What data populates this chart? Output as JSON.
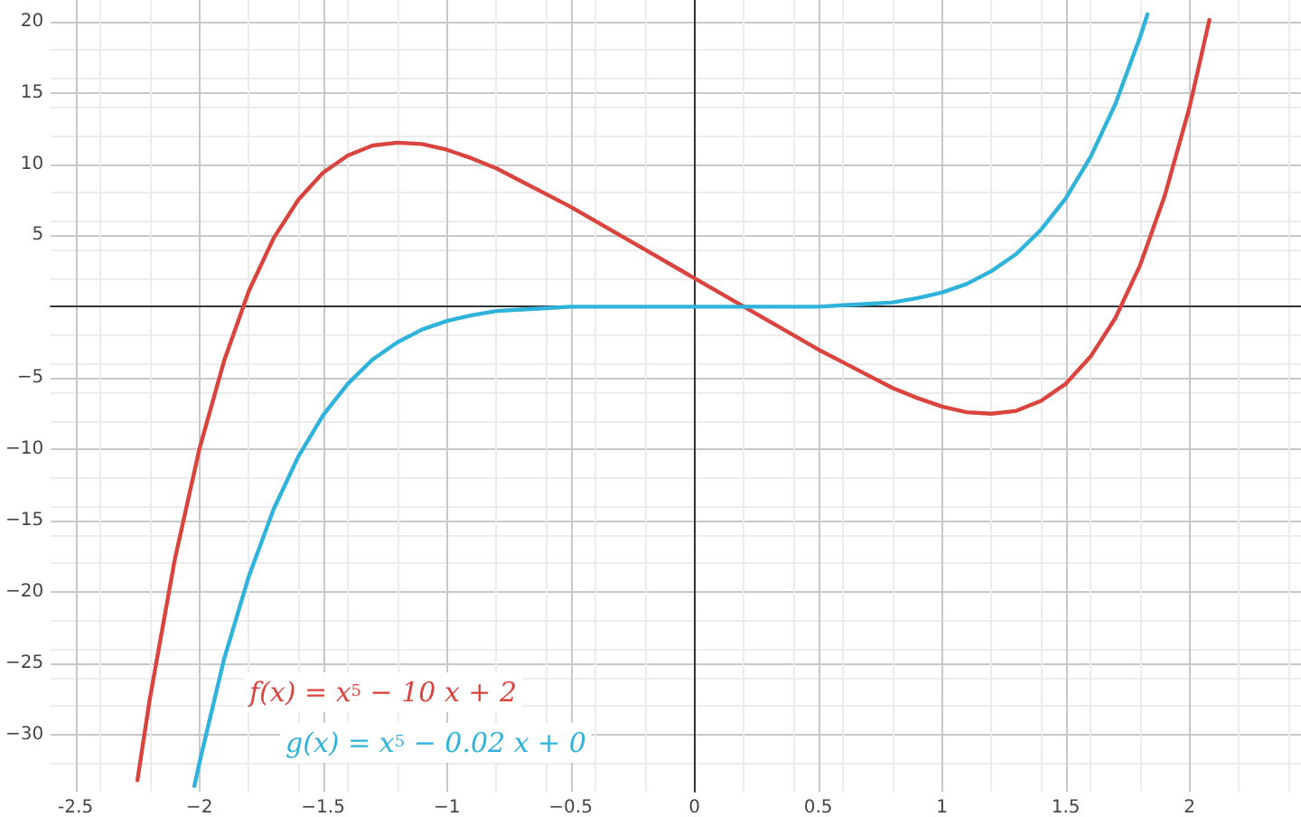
{
  "chart_data": {
    "type": "line",
    "xlim": [
      -2.6,
      2.45
    ],
    "ylim": [
      -34,
      21.5
    ],
    "xticks": [
      {
        "value": -2.5,
        "label": "-2.5"
      },
      {
        "value": -2,
        "label": "−2"
      },
      {
        "value": -1.5,
        "label": "−1.5"
      },
      {
        "value": -1,
        "label": "−1"
      },
      {
        "value": -0.5,
        "label": "−0.5"
      },
      0,
      0.5,
      1,
      1.5,
      2
    ],
    "yticks": [
      {
        "value": -30,
        "label": "−30"
      },
      {
        "value": -25,
        "label": "−25"
      },
      {
        "value": -20,
        "label": "−20"
      },
      {
        "value": -15,
        "label": "−15"
      },
      {
        "value": -10,
        "label": "−10"
      },
      {
        "value": -5,
        "label": "−5"
      },
      {
        "value": 0,
        "label": null
      },
      5,
      10,
      15,
      20
    ],
    "grid": true,
    "marker": "none",
    "line_style": "solid",
    "series": [
      {
        "name": "f(x) = x$^{5}$ − 10 x + 2",
        "color": "#d9443f",
        "x": [
          -2.25,
          -2.2,
          -2.1,
          -2.0,
          -1.9,
          -1.8,
          -1.7,
          -1.6,
          -1.5,
          -1.4,
          -1.3,
          -1.2,
          -1.1,
          -1.0,
          -0.9,
          -0.8,
          -0.7,
          -0.6,
          -0.5,
          -0.4,
          -0.3,
          -0.2,
          -0.1,
          0,
          0.1,
          0.2,
          0.3,
          0.4,
          0.5,
          0.6,
          0.7,
          0.8,
          0.9,
          1.0,
          1.1,
          1.2,
          1.3,
          1.4,
          1.5,
          1.6,
          1.7,
          1.8,
          1.9,
          2.0,
          2.08
        ],
        "values": [
          -33.2,
          -27.5,
          -17.8,
          -10,
          -3.8,
          1.1,
          4.8,
          7.5,
          9.4,
          10.6,
          11.3,
          11.5,
          11.4,
          11,
          10.4,
          9.7,
          8.8,
          7.9,
          7.0,
          6.0,
          5.0,
          4.0,
          3.0,
          2,
          1.0,
          0.0,
          -1.0,
          -2.0,
          -3.0,
          -3.9,
          -4.8,
          -5.7,
          -6.4,
          -7,
          -7.4,
          -7.5,
          -7.3,
          -6.6,
          -5.4,
          -3.5,
          -0.8,
          2.9,
          7.8,
          14,
          20.1
        ]
      },
      {
        "name": "g(x) = x$^{5}$ − 0.02 x + 0",
        "color": "#2fb3da",
        "x": [
          -2.02,
          -2.0,
          -1.9,
          -1.8,
          -1.7,
          -1.6,
          -1.5,
          -1.4,
          -1.3,
          -1.2,
          -1.1,
          -1.0,
          -0.9,
          -0.8,
          -0.7,
          -0.6,
          -0.5,
          -0.4,
          -0.2,
          0,
          0.2,
          0.4,
          0.5,
          0.6,
          0.7,
          0.8,
          0.9,
          1.0,
          1.1,
          1.2,
          1.3,
          1.4,
          1.5,
          1.6,
          1.7,
          1.8,
          1.83
        ],
        "values": [
          -33.6,
          -32.0,
          -24.7,
          -18.9,
          -14.2,
          -10.5,
          -7.6,
          -5.4,
          -3.7,
          -2.5,
          -1.6,
          -1.0,
          -0.6,
          -0.3,
          -0.2,
          -0.1,
          0,
          0,
          0,
          0,
          0,
          0,
          0,
          0.1,
          0.2,
          0.3,
          0.6,
          1.0,
          1.6,
          2.5,
          3.7,
          5.4,
          7.6,
          10.5,
          14.2,
          18.9,
          20.5
        ]
      }
    ]
  }
}
